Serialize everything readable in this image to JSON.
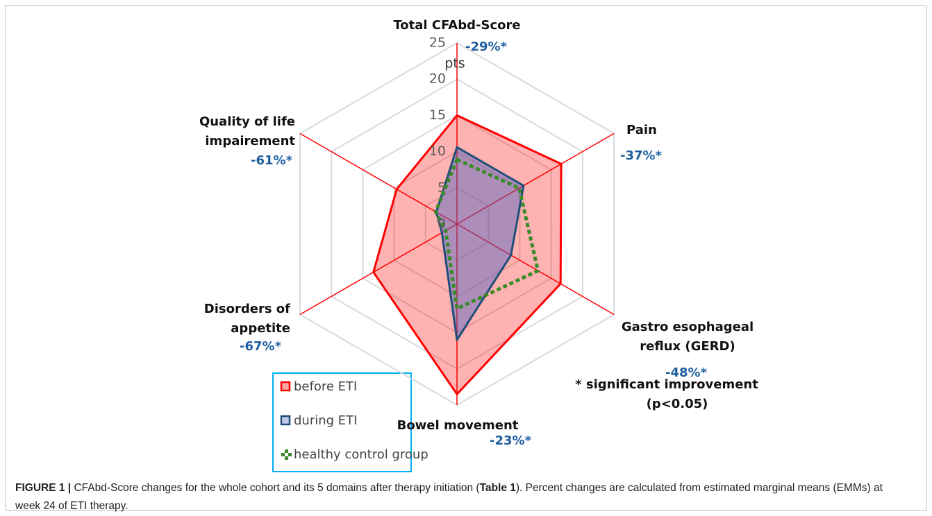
{
  "chart_data": {
    "type": "radar",
    "categories": [
      "Total CFAbd-Score",
      "Pain",
      "Gastro esophageal reflux (GERD)",
      "Bowel movement",
      "Disorders of appetite",
      "Quality of life impairement"
    ],
    "annotations": [
      "-29%*",
      "-37%*",
      "-48%*",
      "-23%*",
      "-67%*",
      "-61%*"
    ],
    "note": [
      "* significant improvement",
      "(p<0.05)"
    ],
    "unit": "pts",
    "ylim": [
      0,
      25
    ],
    "yticks": [
      0,
      5,
      10,
      15,
      20,
      25
    ],
    "grid": true,
    "series": [
      {
        "name": "before ETI",
        "color": "#ff0000",
        "fill": "#ff0000",
        "values": [
          15,
          16.6,
          16.5,
          23.5,
          13.3,
          9.6
        ]
      },
      {
        "name": "during ETI",
        "color": "#1f4e79",
        "fill": "#4a5fc0",
        "values": [
          10.6,
          10.6,
          8.6,
          16,
          2.4,
          3.3
        ]
      },
      {
        "name": "healthy control group",
        "color": "#3a8a2a",
        "dashed": true,
        "values": [
          8.9,
          9.9,
          12.9,
          11.7,
          1.8,
          3.4
        ]
      }
    ],
    "caption": [
      {
        "text": "FIGURE 1 |",
        "bold": true
      },
      {
        "text": " CFAbd-Score changes for the whole cohort and its 5 domains after therapy initiation ("
      },
      {
        "text": "Table 1",
        "bold": true
      },
      {
        "text": "). Percent changes are calculated from estimated marginal means (EMMs) at week 24 of ETI therapy."
      }
    ]
  }
}
